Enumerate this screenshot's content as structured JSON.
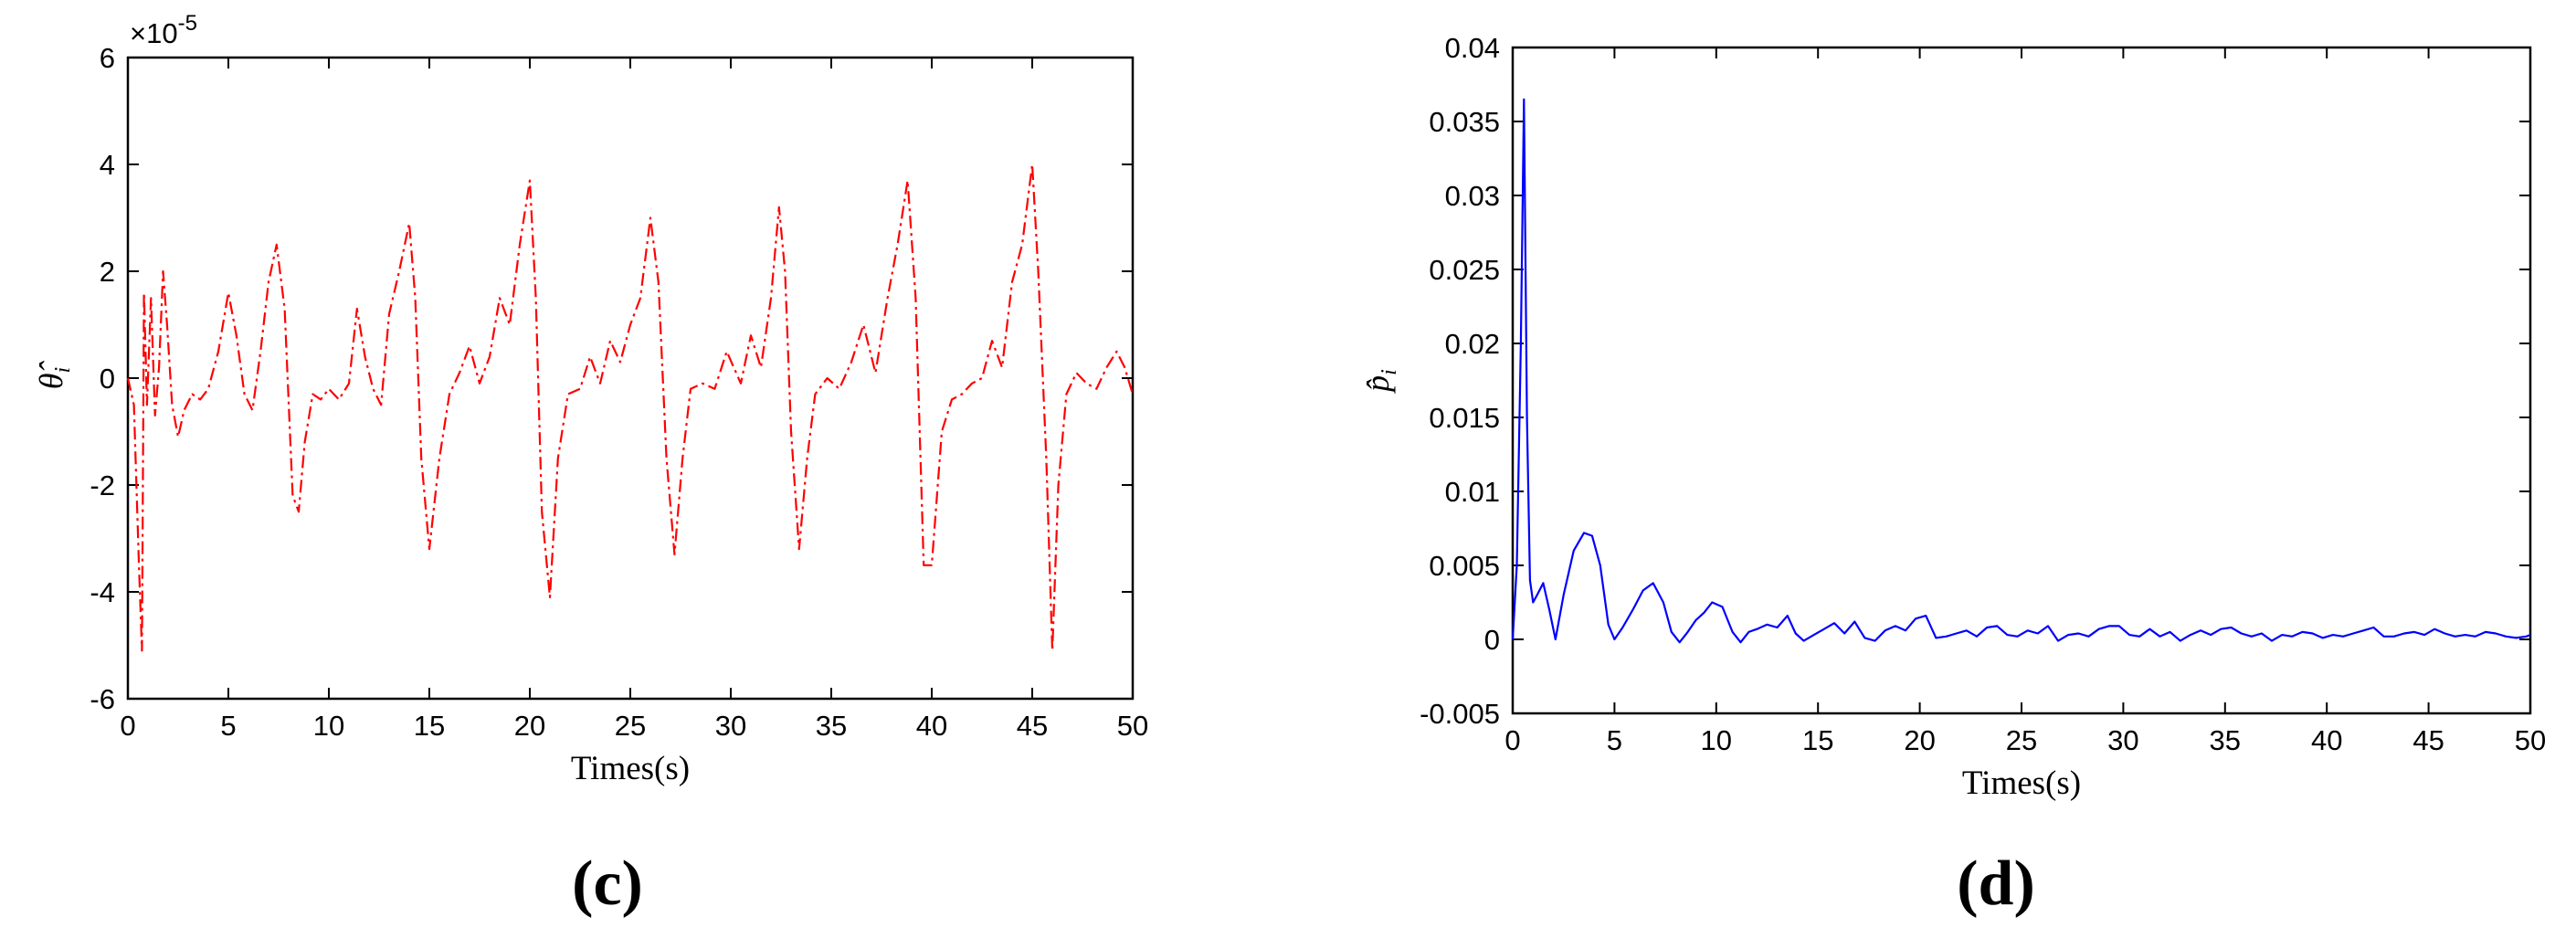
{
  "chart_data": [
    {
      "type": "line",
      "panel_label": "(c)",
      "xlabel": "Times(s)",
      "ylabel": "θ̂",
      "ylabel_subscript": "i",
      "y_multiplier": "×10",
      "y_multiplier_exp": "-5",
      "xlim": [
        0,
        50
      ],
      "ylim": [
        -6,
        6
      ],
      "xticks": [
        "0",
        "5",
        "10",
        "15",
        "20",
        "25",
        "30",
        "35",
        "40",
        "45",
        "50"
      ],
      "yticks": [
        "-6",
        "-4",
        "-2",
        "0",
        "2",
        "4",
        "6"
      ],
      "line_color": "#ff0000",
      "line_style": "dash-dot",
      "grid": false,
      "series": [
        {
          "x": [
            0,
            0.3,
            0.55,
            0.7,
            0.8,
            0.95,
            1.15,
            1.35,
            1.55,
            1.75,
            1.95,
            2.2,
            2.5,
            2.8,
            3.2,
            3.6,
            4.0,
            4.5,
            5.0,
            5.4,
            5.8,
            6.2,
            6.6,
            7.0,
            7.4,
            7.8,
            8.2,
            8.5,
            8.8,
            9.2,
            9.6,
            10.0,
            10.5,
            11.0,
            11.4,
            11.8,
            12.2,
            12.6,
            13.0,
            13.5,
            14.0,
            14.3,
            14.6,
            15.0,
            15.5,
            16.0,
            16.5,
            17.0,
            17.5,
            18.0,
            18.5,
            19.0,
            19.5,
            20.0,
            20.3,
            20.6,
            21.0,
            21.4,
            21.9,
            22.5,
            23.0,
            23.5,
            24.0,
            24.5,
            25.0,
            25.5,
            26.0,
            26.4,
            26.8,
            27.2,
            27.6,
            28.0,
            28.6,
            29.2,
            29.8,
            30.5,
            31.0,
            31.5,
            32.0,
            32.4,
            32.7,
            33.0,
            33.4,
            33.8,
            34.2,
            34.8,
            35.4,
            36.0,
            36.6,
            37.2,
            37.8,
            38.3,
            38.8,
            39.2,
            39.6,
            40.0,
            40.5,
            41.0,
            41.5,
            42.0,
            42.5,
            43.0,
            43.5,
            44.0,
            44.5,
            45.0,
            45.3,
            45.7,
            46.0,
            46.3,
            46.7,
            47.2,
            47.7,
            48.2,
            48.7,
            49.2,
            49.6,
            50.0
          ],
          "y": [
            0,
            -0.5,
            -3.5,
            -5.1,
            1.6,
            -0.5,
            1.5,
            -0.7,
            0.2,
            2.0,
            1.0,
            -0.5,
            -1.1,
            -0.6,
            -0.3,
            -0.4,
            -0.2,
            0.5,
            1.6,
            0.8,
            -0.3,
            -0.6,
            0.5,
            1.8,
            2.5,
            1.3,
            -2.2,
            -2.5,
            -1.2,
            -0.3,
            -0.4,
            -0.2,
            -0.4,
            -0.1,
            1.3,
            0.4,
            -0.2,
            -0.5,
            1.2,
            2.0,
            2.9,
            1.5,
            -1.5,
            -3.2,
            -1.5,
            -0.3,
            0.1,
            0.6,
            -0.1,
            0.4,
            1.5,
            1.0,
            2.5,
            3.7,
            1.5,
            -2.5,
            -4.1,
            -1.5,
            -0.3,
            -0.2,
            0.4,
            -0.1,
            0.7,
            0.3,
            1.0,
            1.5,
            3.0,
            1.8,
            -1.5,
            -3.3,
            -1.5,
            -0.2,
            -0.1,
            -0.2,
            0.5,
            -0.1,
            0.8,
            0.2,
            1.5,
            3.2,
            2.0,
            -1.0,
            -3.2,
            -1.5,
            -0.3,
            0.0,
            -0.2,
            0.3,
            1.0,
            0.1,
            1.5,
            2.5,
            3.7,
            1.5,
            -3.5,
            -3.5,
            -1.0,
            -0.4,
            -0.3,
            -0.1,
            0.0,
            0.7,
            0.2,
            1.8,
            2.5,
            4.0,
            2.0,
            -1.5,
            -5.1,
            -2.0,
            -0.3,
            0.1,
            -0.1,
            -0.2,
            0.2,
            0.5,
            0.2,
            -0.3
          ]
        }
      ]
    },
    {
      "type": "line",
      "panel_label": "(d)",
      "xlabel": "Times(s)",
      "ylabel": "p̂",
      "ylabel_subscript": "i",
      "xlim": [
        0,
        50
      ],
      "ylim": [
        -0.005,
        0.04
      ],
      "xticks": [
        "0",
        "5",
        "10",
        "15",
        "20",
        "25",
        "30",
        "35",
        "40",
        "45",
        "50"
      ],
      "yticks": [
        "-0.005",
        "0",
        "0.005",
        "0.01",
        "0.015",
        "0.02",
        "0.025",
        "0.03",
        "0.035",
        "0.04"
      ],
      "line_color": "#0000ff",
      "line_style": "solid",
      "grid": false,
      "series": [
        {
          "x": [
            0,
            0.2,
            0.4,
            0.55,
            0.7,
            0.85,
            1.0,
            1.2,
            1.5,
            1.8,
            2.1,
            2.5,
            3.0,
            3.5,
            3.9,
            4.3,
            4.7,
            5.0,
            5.4,
            5.9,
            6.4,
            6.9,
            7.4,
            7.8,
            8.2,
            8.6,
            9.0,
            9.4,
            9.8,
            10.3,
            10.8,
            11.2,
            11.6,
            12.0,
            12.5,
            13.0,
            13.5,
            13.9,
            14.3,
            14.8,
            15.3,
            15.8,
            16.3,
            16.8,
            17.3,
            17.8,
            18.3,
            18.8,
            19.3,
            19.8,
            20.3,
            20.8,
            21.3,
            21.8,
            22.3,
            22.8,
            23.3,
            23.8,
            24.3,
            24.8,
            25.3,
            25.8,
            26.3,
            26.8,
            27.3,
            27.8,
            28.3,
            28.8,
            29.3,
            29.8,
            30.3,
            30.8,
            31.3,
            31.8,
            32.3,
            32.8,
            33.3,
            33.8,
            34.3,
            34.8,
            35.3,
            35.8,
            36.3,
            36.8,
            37.3,
            37.8,
            38.3,
            38.8,
            39.3,
            39.8,
            40.3,
            40.8,
            41.3,
            41.8,
            42.3,
            42.8,
            43.3,
            43.8,
            44.3,
            44.8,
            45.3,
            45.8,
            46.3,
            46.8,
            47.3,
            47.8,
            48.3,
            48.8,
            49.3,
            49.8,
            50.0
          ],
          "y": [
            0,
            0.005,
            0.02,
            0.0365,
            0.015,
            0.004,
            0.0025,
            0.003,
            0.0038,
            0.002,
            0.0,
            0.003,
            0.006,
            0.0072,
            0.007,
            0.005,
            0.001,
            0.0,
            0.0008,
            0.002,
            0.0033,
            0.0038,
            0.0025,
            0.0005,
            -0.0002,
            0.0005,
            0.0013,
            0.0018,
            0.0025,
            0.0022,
            0.0005,
            -0.0002,
            0.0005,
            0.0007,
            0.001,
            0.0008,
            0.0016,
            0.0004,
            -0.0001,
            0.0003,
            0.0007,
            0.0011,
            0.0004,
            0.0012,
            0.0001,
            -0.0001,
            0.0006,
            0.0009,
            0.0006,
            0.0014,
            0.0016,
            0.0001,
            0.0002,
            0.0004,
            0.0006,
            0.0002,
            0.0008,
            0.0009,
            0.0003,
            0.0002,
            0.0006,
            0.0004,
            0.0009,
            -0.0001,
            0.0003,
            0.0004,
            0.0002,
            0.0007,
            0.0009,
            0.0009,
            0.0003,
            0.0002,
            0.0007,
            0.0002,
            0.0005,
            -0.0001,
            0.0003,
            0.0006,
            0.0003,
            0.0007,
            0.0008,
            0.0004,
            0.0002,
            0.0004,
            -0.0001,
            0.0003,
            0.0002,
            0.0005,
            0.0004,
            0.0001,
            0.0003,
            0.0002,
            0.0004,
            0.0006,
            0.0008,
            0.0002,
            0.0002,
            0.0004,
            0.0005,
            0.0003,
            0.0007,
            0.0004,
            0.0002,
            0.0003,
            0.0002,
            0.0005,
            0.0004,
            0.0002,
            0.0001,
            0.0002,
            0.0003
          ]
        }
      ]
    }
  ]
}
